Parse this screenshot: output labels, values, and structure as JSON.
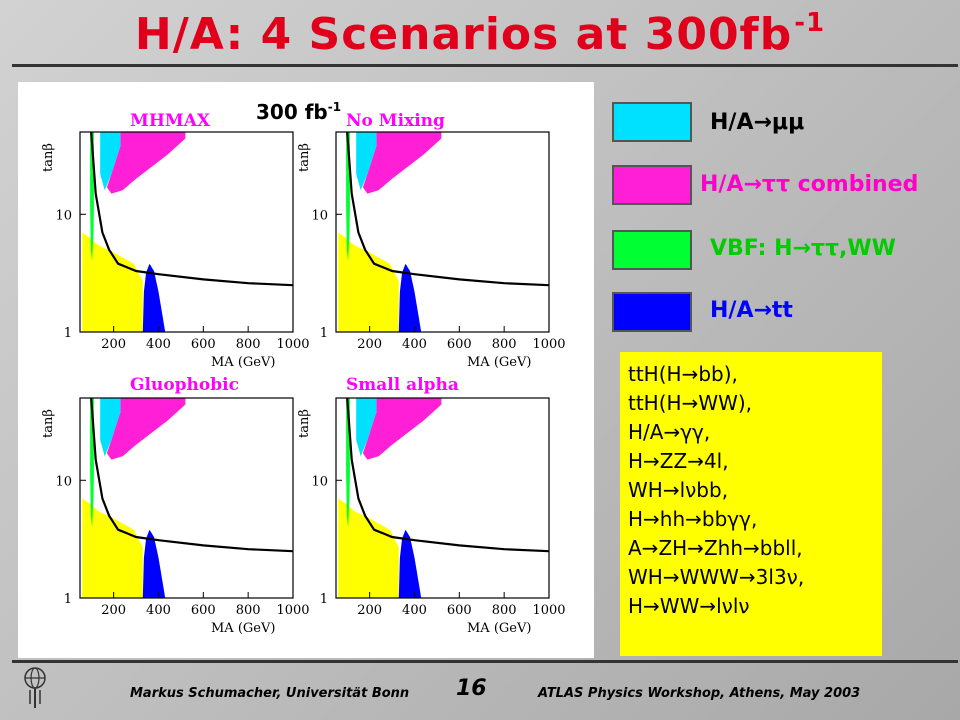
{
  "title": "H/A: 4 Scenarios at 300fb",
  "title_sup": "-1",
  "lumi": {
    "text": "300 fb",
    "sup": "-1"
  },
  "legend": [
    {
      "label": "H/A→μμ",
      "color": "#00e0ff",
      "text_color": "#000000"
    },
    {
      "label": "H/A→ττ combined",
      "color": "#ff1fd6",
      "text_color": "#ff00cc"
    },
    {
      "label": "VBF: H→ττ,WW",
      "color": "#00ff33",
      "text_color": "#00cc00"
    },
    {
      "label": "H/A→tt",
      "color": "#0000ff",
      "text_color": "#0000ff"
    }
  ],
  "other_channels": [
    "ttH(H→bb),",
    "ttH(H→WW),",
    "H/A→γγ,",
    "H→ZZ→4l,",
    "WH→lνbb,",
    "H→hh→bbγγ,",
    "A→ZH→Zhh→bbll,",
    "WH→WWW→3l3ν,",
    "H→WW→lνlν"
  ],
  "other_color": "#ffff00",
  "footer": {
    "left": "Markus Schumacher, Universität Bonn",
    "page": "16",
    "right": "ATLAS Physics Workshop, Athens, May 2003"
  },
  "chart_data": [
    {
      "type": "area",
      "scenario": "MHMAX",
      "xlabel": "M_A (GeV)",
      "ylabel": "tanβ",
      "x_ticks": [
        200,
        400,
        600,
        800,
        1000
      ],
      "y_ticks": [
        1,
        10
      ],
      "xlim": [
        50,
        1000
      ],
      "ylim": [
        1,
        50
      ],
      "y_log": true,
      "regions": {
        "mumu": [
          [
            140,
            50
          ],
          [
            230,
            50
          ],
          [
            230,
            38
          ],
          [
            190,
            22
          ],
          [
            160,
            16
          ],
          [
            140,
            22
          ]
        ],
        "tautau": [
          [
            230,
            50
          ],
          [
            520,
            50
          ],
          [
            520,
            44
          ],
          [
            440,
            32
          ],
          [
            300,
            20
          ],
          [
            240,
            16
          ],
          [
            190,
            15
          ],
          [
            170,
            17
          ],
          [
            190,
            22
          ],
          [
            230,
            38
          ]
        ],
        "vbf": [
          [
            95,
            50
          ],
          [
            112,
            50
          ],
          [
            112,
            11
          ],
          [
            110,
            7
          ],
          [
            104,
            4
          ],
          [
            98,
            5
          ],
          [
            95,
            12
          ]
        ],
        "yellow": [
          [
            60,
            1
          ],
          [
            330,
            1
          ],
          [
            330,
            2.7
          ],
          [
            290,
            3.8
          ],
          [
            250,
            4.2
          ],
          [
            195,
            4.8
          ],
          [
            135,
            5.4
          ],
          [
            90,
            6.4
          ],
          [
            60,
            7
          ]
        ],
        "tt": [
          [
            330,
            1
          ],
          [
            430,
            1
          ],
          [
            420,
            1.3
          ],
          [
            400,
            2.2
          ],
          [
            380,
            3.3
          ],
          [
            360,
            3.8
          ],
          [
            345,
            3.2
          ],
          [
            335,
            2.2
          ]
        ]
      },
      "contour": {
        "x": [
          100,
          120,
          150,
          180,
          220,
          300,
          400,
          600,
          800,
          1000
        ],
        "y": [
          50,
          15,
          7,
          5,
          3.8,
          3.3,
          3.1,
          2.8,
          2.6,
          2.5
        ]
      }
    },
    {
      "type": "area",
      "scenario": "No Mixing",
      "xlabel": "M_A (GeV)",
      "ylabel": "tanβ",
      "x_ticks": [
        200,
        400,
        600,
        800,
        1000
      ],
      "y_ticks": [
        1,
        10
      ],
      "xlim": [
        50,
        1000
      ],
      "ylim": [
        1,
        50
      ],
      "y_log": true,
      "regions": {
        "mumu": [
          [
            140,
            50
          ],
          [
            230,
            50
          ],
          [
            230,
            38
          ],
          [
            190,
            22
          ],
          [
            160,
            16
          ],
          [
            140,
            22
          ]
        ],
        "tautau": [
          [
            230,
            50
          ],
          [
            520,
            50
          ],
          [
            520,
            44
          ],
          [
            440,
            32
          ],
          [
            300,
            20
          ],
          [
            240,
            16
          ],
          [
            190,
            15
          ],
          [
            170,
            17
          ],
          [
            190,
            22
          ],
          [
            230,
            38
          ]
        ],
        "vbf": [
          [
            95,
            50
          ],
          [
            112,
            50
          ],
          [
            112,
            11
          ],
          [
            110,
            7
          ],
          [
            104,
            4
          ],
          [
            98,
            5
          ],
          [
            95,
            12
          ]
        ],
        "yellow": [
          [
            60,
            1
          ],
          [
            330,
            1
          ],
          [
            330,
            2.7
          ],
          [
            290,
            3.8
          ],
          [
            250,
            4.2
          ],
          [
            195,
            4.8
          ],
          [
            135,
            5.4
          ],
          [
            90,
            6.4
          ],
          [
            60,
            7
          ]
        ],
        "tt": [
          [
            330,
            1
          ],
          [
            430,
            1
          ],
          [
            420,
            1.3
          ],
          [
            400,
            2.2
          ],
          [
            380,
            3.3
          ],
          [
            360,
            3.8
          ],
          [
            345,
            3.2
          ],
          [
            335,
            2.2
          ]
        ]
      },
      "contour": {
        "x": [
          100,
          120,
          150,
          180,
          220,
          300,
          400,
          600,
          800,
          1000
        ],
        "y": [
          50,
          15,
          7,
          5,
          3.8,
          3.3,
          3.1,
          2.8,
          2.6,
          2.5
        ]
      }
    },
    {
      "type": "area",
      "scenario": "Gluophobic",
      "xlabel": "M_A (GeV)",
      "ylabel": "tanβ",
      "x_ticks": [
        200,
        400,
        600,
        800,
        1000
      ],
      "y_ticks": [
        1,
        10
      ],
      "xlim": [
        50,
        1000
      ],
      "ylim": [
        1,
        50
      ],
      "y_log": true,
      "regions": {
        "mumu": [
          [
            140,
            50
          ],
          [
            230,
            50
          ],
          [
            230,
            38
          ],
          [
            190,
            22
          ],
          [
            160,
            16
          ],
          [
            140,
            22
          ]
        ],
        "tautau": [
          [
            230,
            50
          ],
          [
            520,
            50
          ],
          [
            520,
            44
          ],
          [
            440,
            32
          ],
          [
            300,
            20
          ],
          [
            240,
            16
          ],
          [
            190,
            15
          ],
          [
            170,
            17
          ],
          [
            190,
            22
          ],
          [
            230,
            38
          ]
        ],
        "vbf": [
          [
            95,
            50
          ],
          [
            112,
            50
          ],
          [
            112,
            11
          ],
          [
            110,
            7
          ],
          [
            104,
            4
          ],
          [
            98,
            5
          ],
          [
            95,
            12
          ]
        ],
        "yellow": [
          [
            60,
            1
          ],
          [
            330,
            1
          ],
          [
            330,
            2.7
          ],
          [
            290,
            3.8
          ],
          [
            250,
            4.2
          ],
          [
            195,
            4.8
          ],
          [
            135,
            5.4
          ],
          [
            90,
            6.4
          ],
          [
            60,
            7
          ]
        ],
        "tt": [
          [
            330,
            1
          ],
          [
            430,
            1
          ],
          [
            420,
            1.3
          ],
          [
            400,
            2.2
          ],
          [
            380,
            3.3
          ],
          [
            360,
            3.8
          ],
          [
            345,
            3.2
          ],
          [
            335,
            2.2
          ]
        ]
      },
      "contour": {
        "x": [
          100,
          120,
          150,
          180,
          220,
          300,
          400,
          600,
          800,
          1000
        ],
        "y": [
          50,
          15,
          7,
          5,
          3.8,
          3.3,
          3.1,
          2.8,
          2.6,
          2.5
        ]
      }
    },
    {
      "type": "area",
      "scenario": "Small alpha",
      "xlabel": "M_A (GeV)",
      "ylabel": "tanβ",
      "x_ticks": [
        200,
        400,
        600,
        800,
        1000
      ],
      "y_ticks": [
        1,
        10
      ],
      "xlim": [
        50,
        1000
      ],
      "ylim": [
        1,
        50
      ],
      "y_log": true,
      "regions": {
        "mumu": [
          [
            140,
            50
          ],
          [
            230,
            50
          ],
          [
            230,
            38
          ],
          [
            190,
            22
          ],
          [
            160,
            16
          ],
          [
            140,
            22
          ]
        ],
        "tautau": [
          [
            230,
            50
          ],
          [
            520,
            50
          ],
          [
            520,
            44
          ],
          [
            440,
            32
          ],
          [
            300,
            20
          ],
          [
            240,
            16
          ],
          [
            190,
            15
          ],
          [
            170,
            17
          ],
          [
            190,
            22
          ],
          [
            230,
            38
          ]
        ],
        "vbf": [
          [
            95,
            50
          ],
          [
            112,
            50
          ],
          [
            112,
            11
          ],
          [
            110,
            7
          ],
          [
            104,
            4
          ],
          [
            98,
            5
          ],
          [
            95,
            12
          ]
        ],
        "yellow": [
          [
            60,
            1
          ],
          [
            330,
            1
          ],
          [
            330,
            2.7
          ],
          [
            290,
            3.8
          ],
          [
            250,
            4.2
          ],
          [
            195,
            4.8
          ],
          [
            135,
            5.4
          ],
          [
            90,
            6.4
          ],
          [
            60,
            7
          ]
        ],
        "tt": [
          [
            330,
            1
          ],
          [
            430,
            1
          ],
          [
            420,
            1.3
          ],
          [
            400,
            2.2
          ],
          [
            380,
            3.3
          ],
          [
            360,
            3.8
          ],
          [
            345,
            3.2
          ],
          [
            335,
            2.2
          ]
        ]
      },
      "contour": {
        "x": [
          100,
          120,
          150,
          180,
          220,
          300,
          400,
          600,
          800,
          1000
        ],
        "y": [
          50,
          15,
          7,
          5,
          3.8,
          3.3,
          3.1,
          2.8,
          2.6,
          2.5
        ]
      }
    }
  ]
}
